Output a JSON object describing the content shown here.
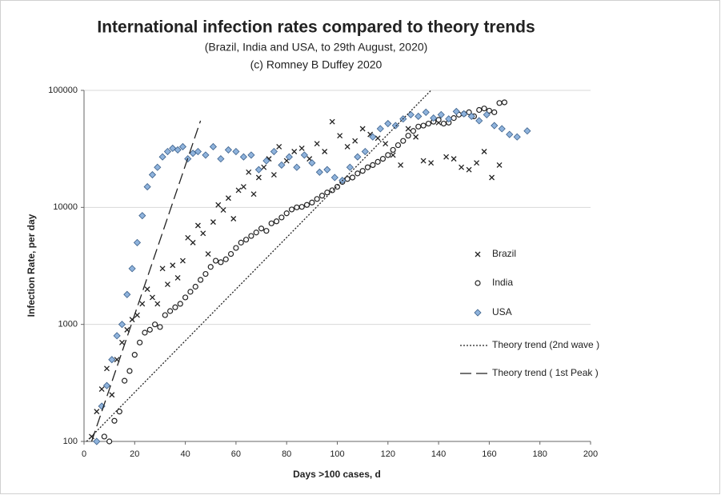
{
  "chart_data": {
    "type": "scatter",
    "title": "International infection rates compared to theory trends",
    "subtitle": "(Brazil, India and USA, to 29th August, 2020)",
    "credit": "(c) Romney B Duffey 2020",
    "x_label": "Days >100 cases, d",
    "y_label": "Infection Rate, per day",
    "xlim": [
      0,
      200
    ],
    "xticks": [
      0,
      20,
      40,
      60,
      80,
      100,
      120,
      140,
      160,
      180,
      200
    ],
    "ylim": [
      100,
      100000
    ],
    "yticks": [
      100,
      1000,
      10000,
      100000
    ],
    "log_y": true,
    "grid": true,
    "legend": "right",
    "series": [
      {
        "name": "Brazil",
        "marker": "cross",
        "color": "#222222",
        "x": [
          3,
          5,
          7,
          9,
          11,
          13,
          15,
          17,
          19,
          21,
          23,
          25,
          27,
          29,
          31,
          33,
          35,
          37,
          39,
          41,
          43,
          45,
          47,
          49,
          51,
          53,
          55,
          57,
          59,
          61,
          63,
          65,
          67,
          69,
          71,
          73,
          75,
          77,
          80,
          83,
          86,
          89,
          92,
          95,
          98,
          101,
          104,
          107,
          110,
          113,
          116,
          119,
          122,
          125,
          128,
          131,
          134,
          137,
          140,
          143,
          146,
          149,
          152,
          155,
          158,
          161,
          164
        ],
        "values": [
          110,
          180,
          280,
          420,
          250,
          500,
          700,
          900,
          1100,
          1200,
          1500,
          2000,
          1700,
          1500,
          3000,
          2200,
          3200,
          2500,
          3500,
          5500,
          5000,
          7000,
          6000,
          4000,
          7500,
          10500,
          9500,
          12000,
          8000,
          14000,
          15000,
          20000,
          13000,
          18000,
          22000,
          26000,
          19000,
          33000,
          25000,
          30000,
          32000,
          26000,
          35000,
          30000,
          54000,
          41000,
          33000,
          37000,
          47000,
          42000,
          39000,
          35000,
          28000,
          23000,
          47000,
          40000,
          25000,
          24000,
          53000,
          27000,
          26000,
          22000,
          21000,
          24000,
          30000,
          18000,
          23000
        ]
      },
      {
        "name": "India",
        "marker": "circle",
        "color": "#222222",
        "x": [
          8,
          10,
          12,
          14,
          16,
          18,
          20,
          22,
          24,
          26,
          28,
          30,
          32,
          34,
          36,
          38,
          40,
          42,
          44,
          46,
          48,
          50,
          52,
          54,
          56,
          58,
          60,
          62,
          64,
          66,
          68,
          70,
          72,
          74,
          76,
          78,
          80,
          82,
          84,
          86,
          88,
          90,
          92,
          94,
          96,
          98,
          100,
          102,
          104,
          106,
          108,
          110,
          112,
          114,
          116,
          118,
          120,
          122,
          124,
          126,
          128,
          130,
          132,
          134,
          136,
          138,
          140,
          142,
          144,
          146,
          148,
          150,
          152,
          154,
          156,
          158,
          160,
          162,
          164,
          166
        ],
        "values": [
          110,
          100,
          150,
          180,
          330,
          400,
          550,
          700,
          850,
          900,
          1000,
          950,
          1200,
          1300,
          1400,
          1500,
          1700,
          1900,
          2100,
          2400,
          2700,
          3100,
          3500,
          3400,
          3600,
          4000,
          4500,
          5000,
          5300,
          5700,
          6100,
          6600,
          6300,
          7300,
          7600,
          8200,
          8900,
          9600,
          10000,
          10100,
          10500,
          11000,
          11800,
          12600,
          13400,
          14000,
          15000,
          16500,
          17500,
          18000,
          19500,
          20500,
          22000,
          23000,
          24500,
          26000,
          28000,
          31000,
          34000,
          37000,
          41000,
          45000,
          49000,
          50000,
          52000,
          54000,
          56000,
          52000,
          53000,
          58000,
          62000,
          63000,
          65000,
          60000,
          68000,
          70000,
          67000,
          65000,
          78000,
          79000
        ]
      },
      {
        "name": "USA",
        "marker": "diamond",
        "color": "#8fb3dc",
        "x": [
          5,
          7,
          9,
          11,
          13,
          15,
          17,
          19,
          21,
          23,
          25,
          27,
          29,
          31,
          33,
          35,
          37,
          39,
          41,
          43,
          45,
          48,
          51,
          54,
          57,
          60,
          63,
          66,
          69,
          72,
          75,
          78,
          81,
          84,
          87,
          90,
          93,
          96,
          99,
          102,
          105,
          108,
          111,
          114,
          117,
          120,
          123,
          126,
          129,
          132,
          135,
          138,
          141,
          144,
          147,
          150,
          153,
          156,
          159,
          162,
          165,
          168,
          171,
          175
        ],
        "values": [
          100,
          200,
          300,
          500,
          800,
          1000,
          1800,
          3000,
          5000,
          8500,
          15000,
          19000,
          22000,
          27000,
          30000,
          32000,
          31000,
          33000,
          26000,
          29000,
          30000,
          28000,
          33000,
          26000,
          31000,
          30000,
          27000,
          28000,
          21000,
          25000,
          30000,
          23000,
          27000,
          22000,
          28000,
          24000,
          20000,
          21000,
          18000,
          17000,
          22000,
          27000,
          30000,
          40000,
          47000,
          52000,
          50000,
          57000,
          62000,
          60000,
          65000,
          58000,
          62000,
          57000,
          66000,
          63000,
          60000,
          55000,
          62000,
          50000,
          47000,
          42000,
          40000,
          45000
        ]
      },
      {
        "name": "Theory trend (2nd wave )",
        "line": "dotted",
        "color": "#222222",
        "x": [
          1,
          137
        ],
        "values": [
          100,
          100000
        ]
      },
      {
        "name": "Theory trend ( 1st Peak )",
        "line": "dashed",
        "color": "#222222",
        "x": [
          3,
          46
        ],
        "values": [
          100,
          55000
        ]
      }
    ]
  }
}
